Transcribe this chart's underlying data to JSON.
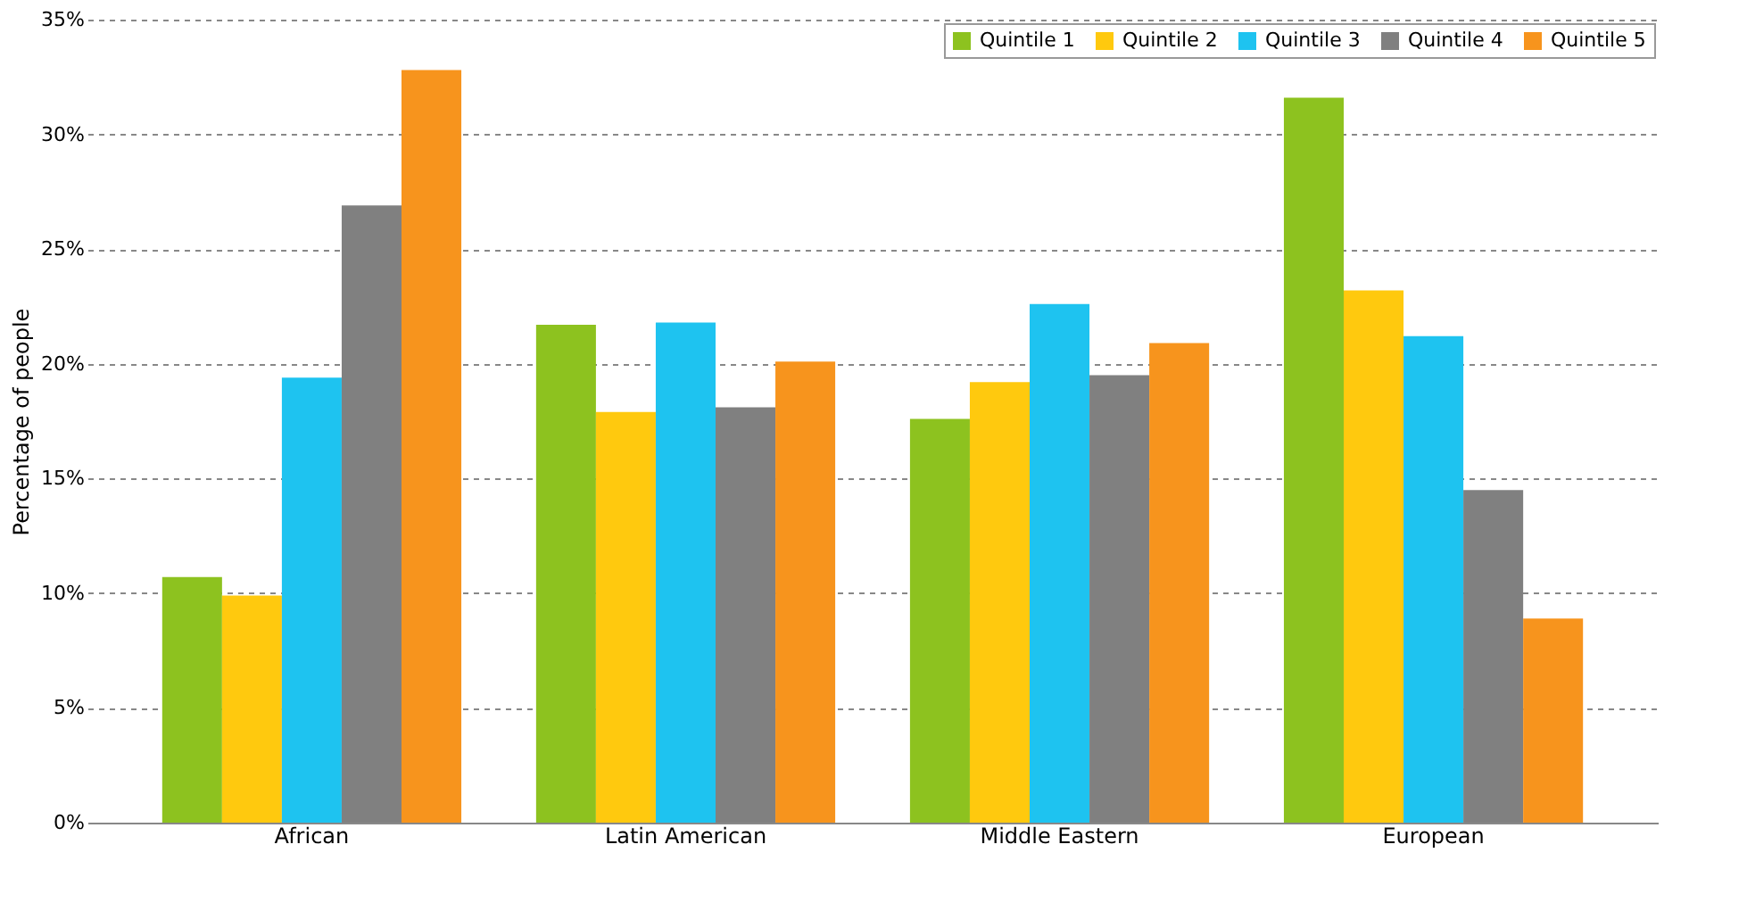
{
  "chart_data": {
    "type": "bar",
    "ylabel": "Percentage of people",
    "categories": [
      "African",
      "Latin American",
      "Middle Eastern",
      "European"
    ],
    "series": [
      {
        "name": "Quintile 1",
        "color": "#8dc21f",
        "values": [
          10.7,
          21.7,
          17.6,
          31.6
        ]
      },
      {
        "name": "Quintile 2",
        "color": "#ffc90e",
        "values": [
          9.9,
          17.9,
          19.2,
          23.2
        ]
      },
      {
        "name": "Quintile 3",
        "color": "#1ec3f0",
        "values": [
          19.4,
          21.8,
          22.6,
          21.2
        ]
      },
      {
        "name": "Quintile 4",
        "color": "#808080",
        "values": [
          26.9,
          18.1,
          19.5,
          14.5
        ]
      },
      {
        "name": "Quintile 5",
        "color": "#f7941d",
        "values": [
          32.8,
          20.1,
          20.9,
          8.9
        ]
      }
    ],
    "ylim": [
      0,
      35
    ],
    "yticks": [
      {
        "value": 0,
        "label": "0%"
      },
      {
        "value": 5,
        "label": "5%"
      },
      {
        "value": 10,
        "label": "10%"
      },
      {
        "value": 15,
        "label": "15%"
      },
      {
        "value": 20,
        "label": "20%"
      },
      {
        "value": 25,
        "label": "25%"
      },
      {
        "value": 30,
        "label": "30%"
      },
      {
        "value": 35,
        "label": "35%"
      }
    ],
    "grid": "y",
    "legend": "top right"
  }
}
